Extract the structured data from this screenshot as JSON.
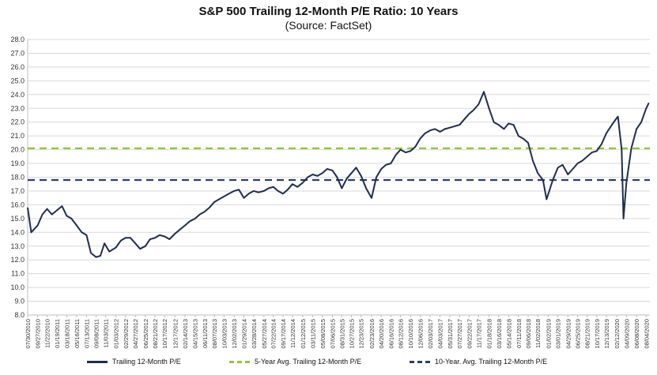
{
  "chart_data": {
    "type": "line",
    "title": "S&P 500 Trailing 12-Month P/E Ratio: 10 Years",
    "subtitle": "(Source: FactSet)",
    "ylim": [
      8.0,
      28.0
    ],
    "yticks": [
      "8.0",
      "9.0",
      "10.0",
      "11.0",
      "12.0",
      "13.0",
      "14.0",
      "15.0",
      "16.0",
      "17.0",
      "18.0",
      "19.0",
      "20.0",
      "21.0",
      "22.0",
      "23.0",
      "24.0",
      "25.0",
      "26.0",
      "27.0",
      "28.0"
    ],
    "xticks": [
      "07/30/2010",
      "09/27/2010",
      "11/22/2010",
      "01/19/2011",
      "03/18/2011",
      "05/16/2011",
      "07/13/2011",
      "09/08/2011",
      "11/03/2011",
      "01/03/2012",
      "02/29/2012",
      "04/27/2012",
      "06/25/2012",
      "08/21/2012",
      "10/17/2012",
      "12/17/2012",
      "02/14/2013",
      "04/15/2013",
      "06/11/2013",
      "08/07/2013",
      "10/03/2013",
      "12/02/2013",
      "01/29/2014",
      "03/28/2014",
      "05/27/2014",
      "07/22/2014",
      "09/17/2014",
      "11/12/2014",
      "01/12/2015",
      "03/11/2015",
      "05/08/2015",
      "07/06/2015",
      "08/31/2015",
      "10/27/2015",
      "12/23/2015",
      "02/23/2016",
      "04/20/2016",
      "06/16/2016",
      "08/12/2016",
      "10/10/2016",
      "12/06/2016",
      "02/03/2017",
      "04/03/2017",
      "05/31/2017",
      "07/27/2017",
      "09/22/2017",
      "11/17/2017",
      "01/18/2018",
      "03/16/2018",
      "05/14/2018",
      "07/11/2018",
      "09/06/2018",
      "11/02/2018",
      "01/02/2019",
      "03/01/2019",
      "04/29/2019",
      "06/25/2019",
      "08/21/2019",
      "10/17/2019",
      "12/13/2019",
      "02/12/2020",
      "04/09/2020",
      "06/08/2020",
      "08/04/2020"
    ],
    "series": [
      {
        "name": "Trailing 12-Month P/E",
        "color": "#1f2d4e",
        "style": "solid",
        "x": [
          "07/30/2010",
          "08/20/2010",
          "09/27/2010",
          "10/25/2010",
          "11/22/2010",
          "12/20/2010",
          "01/19/2011",
          "02/18/2011",
          "03/18/2011",
          "04/15/2011",
          "05/16/2011",
          "06/15/2011",
          "07/13/2011",
          "08/08/2011",
          "09/08/2011",
          "10/03/2011",
          "10/27/2011",
          "11/25/2011",
          "01/03/2012",
          "02/01/2012",
          "02/29/2012",
          "03/29/2012",
          "04/27/2012",
          "05/25/2012",
          "06/25/2012",
          "07/23/2012",
          "08/21/2012",
          "09/18/2012",
          "10/17/2012",
          "11/15/2012",
          "12/17/2012",
          "01/15/2013",
          "02/14/2013",
          "03/15/2013",
          "04/15/2013",
          "05/13/2013",
          "06/11/2013",
          "07/09/2013",
          "08/07/2013",
          "09/04/2013",
          "10/03/2013",
          "11/01/2013",
          "12/02/2013",
          "12/30/2013",
          "01/29/2014",
          "02/26/2014",
          "03/28/2014",
          "04/25/2014",
          "05/27/2014",
          "06/24/2014",
          "07/22/2014",
          "08/19/2014",
          "09/17/2014",
          "10/15/2014",
          "11/12/2014",
          "12/12/2014",
          "01/12/2015",
          "02/10/2015",
          "03/11/2015",
          "04/09/2015",
          "05/08/2015",
          "06/05/2015",
          "07/06/2015",
          "08/03/2015",
          "08/31/2015",
          "09/29/2015",
          "10/27/2015",
          "11/24/2015",
          "12/23/2015",
          "01/22/2016",
          "02/23/2016",
          "03/22/2016",
          "04/20/2016",
          "05/18/2016",
          "06/16/2016",
          "07/14/2016",
          "08/12/2016",
          "09/12/2016",
          "10/10/2016",
          "11/07/2016",
          "12/06/2016",
          "01/05/2017",
          "02/03/2017",
          "03/03/2017",
          "04/03/2017",
          "05/02/2017",
          "05/31/2017",
          "06/28/2017",
          "07/27/2017",
          "08/24/2017",
          "09/22/2017",
          "10/20/2017",
          "11/17/2017",
          "12/18/2017",
          "01/18/2018",
          "02/15/2018",
          "03/16/2018",
          "04/16/2018",
          "05/14/2018",
          "06/12/2018",
          "07/11/2018",
          "08/08/2018",
          "09/06/2018",
          "10/04/2018",
          "11/02/2018",
          "12/03/2018",
          "12/24/2018",
          "01/30/2019",
          "03/01/2019",
          "03/29/2019",
          "04/29/2019",
          "05/28/2019",
          "06/25/2019",
          "07/23/2019",
          "08/21/2019",
          "09/18/2019",
          "10/17/2019",
          "11/14/2019",
          "12/13/2019",
          "01/14/2020",
          "02/12/2020",
          "02/19/2020",
          "03/12/2020",
          "03/23/2020",
          "04/09/2020",
          "05/08/2020",
          "06/08/2020",
          "07/06/2020",
          "08/04/2020",
          "08/20/2020"
        ],
        "values": [
          15.8,
          14.0,
          14.5,
          15.3,
          15.7,
          15.3,
          15.6,
          15.9,
          15.2,
          15.0,
          14.5,
          14.0,
          13.8,
          12.5,
          12.2,
          12.3,
          13.2,
          12.6,
          12.9,
          13.4,
          13.6,
          13.6,
          13.2,
          12.8,
          13.0,
          13.5,
          13.6,
          13.8,
          13.7,
          13.5,
          13.9,
          14.2,
          14.5,
          14.8,
          15.0,
          15.3,
          15.5,
          15.8,
          16.2,
          16.4,
          16.6,
          16.8,
          17.0,
          17.1,
          16.5,
          16.8,
          17.0,
          16.9,
          17.0,
          17.2,
          17.3,
          17.0,
          16.8,
          17.1,
          17.5,
          17.3,
          17.6,
          18.0,
          18.2,
          18.1,
          18.3,
          18.6,
          18.5,
          18.0,
          17.2,
          17.9,
          18.3,
          18.7,
          18.1,
          17.2,
          16.5,
          18.0,
          18.6,
          18.9,
          19.0,
          19.6,
          20.0,
          19.8,
          19.9,
          20.2,
          20.8,
          21.2,
          21.4,
          21.5,
          21.3,
          21.5,
          21.6,
          21.7,
          21.8,
          22.2,
          22.6,
          22.9,
          23.3,
          24.2,
          23.0,
          22.0,
          21.8,
          21.5,
          21.9,
          21.8,
          21.0,
          20.8,
          20.5,
          19.2,
          18.3,
          17.8,
          16.4,
          17.8,
          18.7,
          18.9,
          18.2,
          18.6,
          19.0,
          19.2,
          19.5,
          19.8,
          19.9,
          20.4,
          21.2,
          21.8,
          22.3,
          22.4,
          20.0,
          15.0,
          17.6,
          20.1,
          21.5,
          22.0,
          23.0,
          23.4
        ]
      },
      {
        "name": "5-Year Avg. Trailing 12-Month P/E",
        "color": "#8dc63f",
        "style": "dashed",
        "values": [
          20.1
        ]
      },
      {
        "name": "10-Year. Avg. Trailing 12-Month P/E",
        "color": "#2b3f67",
        "style": "dashed",
        "values": [
          17.8
        ]
      }
    ],
    "grid": true,
    "legend": "bottom"
  }
}
